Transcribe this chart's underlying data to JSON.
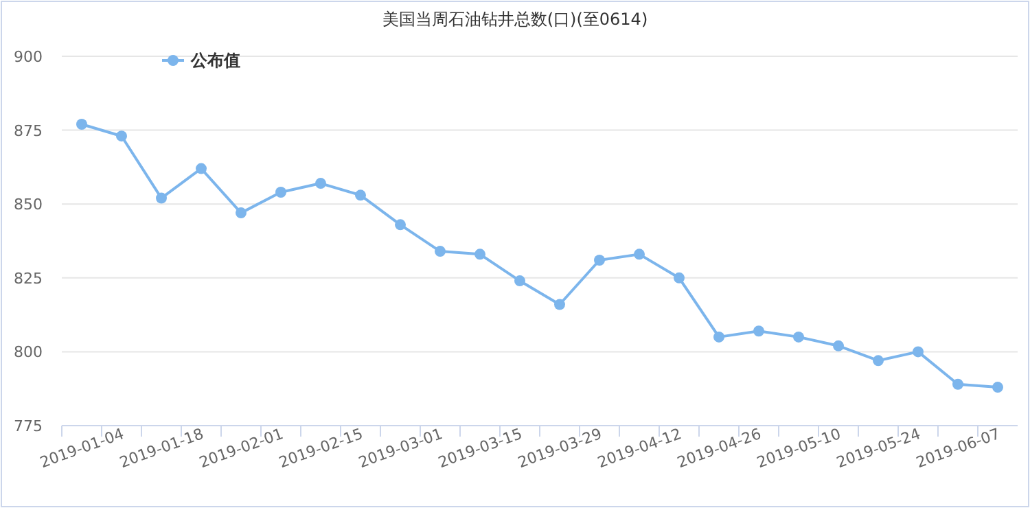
{
  "chart_data": {
    "type": "line",
    "title": "美国当周石油钻井总数(口)(至0614)",
    "categories": [
      "2019-01-04",
      null,
      "2019-01-18",
      null,
      "2019-02-01",
      null,
      "2019-02-15",
      null,
      "2019-03-01",
      null,
      "2019-03-15",
      null,
      "2019-03-29",
      null,
      "2019-04-12",
      null,
      "2019-04-26",
      null,
      "2019-05-10",
      null,
      "2019-05-24",
      null,
      "2019-06-07",
      null
    ],
    "series": [
      {
        "name": "公布值",
        "color": "#7cb5ec",
        "values": [
          877,
          873,
          852,
          862,
          847,
          854,
          857,
          853,
          843,
          834,
          833,
          824,
          816,
          831,
          833,
          825,
          805,
          807,
          805,
          802,
          797,
          800,
          789,
          788
        ]
      }
    ],
    "ylim": [
      775,
      900
    ],
    "yticks": [
      775,
      800,
      825,
      850,
      875,
      900
    ],
    "grid": "y",
    "legend": "top left",
    "marker": "circle"
  }
}
